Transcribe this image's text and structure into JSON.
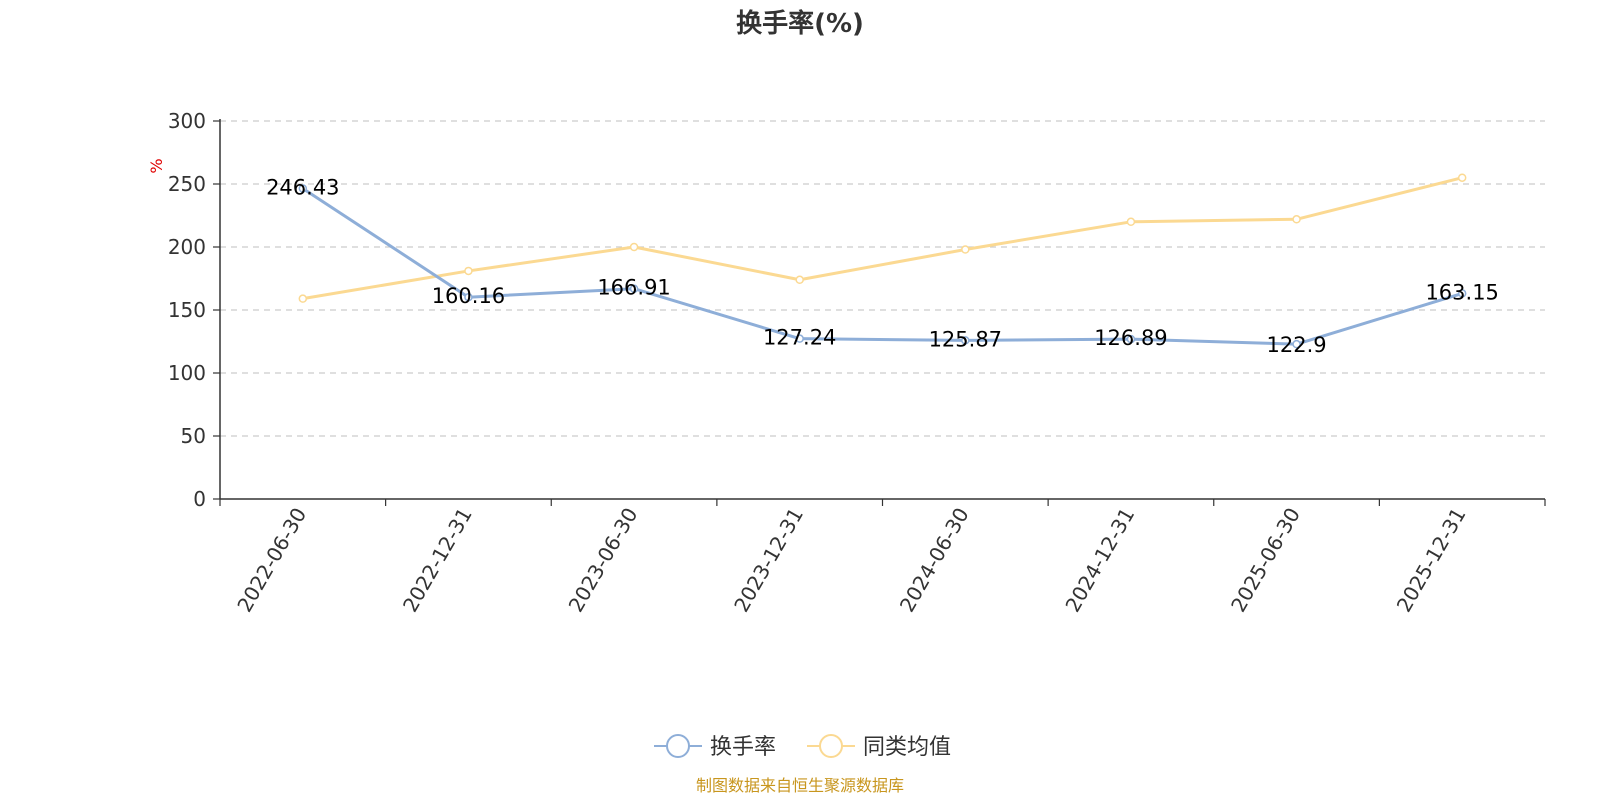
{
  "chart_data": {
    "type": "line",
    "title": "换手率(%)",
    "ylabel": "%",
    "categories": [
      "2022-06-30",
      "2022-12-31",
      "2023-06-30",
      "2023-12-31",
      "2024-06-30",
      "2024-12-31",
      "2025-06-30",
      "2025-12-31"
    ],
    "series": [
      {
        "name": "换手率",
        "color": "#8eaed8",
        "values": [
          246.43,
          160.16,
          166.91,
          127.24,
          125.87,
          126.89,
          122.9,
          163.15
        ],
        "labels": [
          "246.43",
          "160.16",
          "166.91",
          "127.24",
          "125.87",
          "126.89",
          "122.9",
          "163.15"
        ]
      },
      {
        "name": "同类均值",
        "color": "#fbd992",
        "values": [
          159,
          181,
          200,
          174,
          198,
          220,
          222,
          255
        ]
      }
    ],
    "ylim": [
      0,
      300
    ],
    "yticks": [
      0,
      50,
      100,
      150,
      200,
      250,
      300
    ],
    "grid": true,
    "legend_position": "bottom"
  },
  "source_text": "制图数据来自恒生聚源数据库"
}
